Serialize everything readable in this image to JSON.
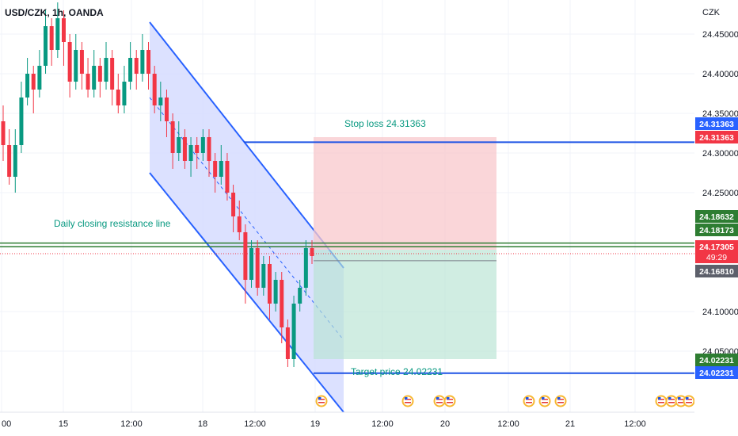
{
  "header": {
    "symbol": "USD/CZK, 1h, OANDA"
  },
  "chart_data": {
    "type": "candlestick",
    "title": "USD/CZK, 1h, OANDA",
    "currency": "CZK",
    "y_ticks": [
      "24.45000",
      "24.40000",
      "24.35000",
      "24.30000",
      "24.25000",
      "24.10000",
      "24.05000"
    ],
    "x_ticks": [
      "00",
      "15",
      "12:00",
      "18",
      "12:00",
      "19",
      "12:00",
      "20",
      "12:00",
      "21",
      "12:00"
    ],
    "ylim": [
      23.97,
      24.475
    ],
    "levels": {
      "stop_loss": 24.31363,
      "daily_resistance_a": 24.18632,
      "daily_resistance_b": 24.18173,
      "entry": 24.1681,
      "current": 24.17305,
      "target": 24.02231
    },
    "annotations": {
      "stop_loss": "Stop loss 24.31363",
      "target": "Target price 24.02231",
      "resistance": "Daily closing resistance line"
    },
    "price_tags": [
      {
        "label": "24.31363",
        "color": "#2962ff"
      },
      {
        "label": "24.31363",
        "color": "#f23645"
      },
      {
        "label": "24.18632",
        "color": "#2e7d32"
      },
      {
        "label": "24.18173",
        "color": "#2e7d32"
      },
      {
        "label": "24.17305",
        "color": "#f23645",
        "sub": "49:29"
      },
      {
        "label": "24.16810",
        "color": "#5d606b"
      },
      {
        "label": "24.02231",
        "color": "#2e7d32"
      },
      {
        "label": "24.02231",
        "color": "#2962ff"
      }
    ],
    "candles": [
      [
        24.34,
        24.31,
        24.29,
        24.36
      ],
      [
        24.31,
        24.27,
        24.26,
        24.33
      ],
      [
        24.27,
        24.31,
        24.25,
        24.33
      ],
      [
        24.31,
        24.37,
        24.3,
        24.39
      ],
      [
        24.37,
        24.4,
        24.36,
        24.42
      ],
      [
        24.4,
        24.38,
        24.35,
        24.41
      ],
      [
        24.38,
        24.41,
        24.37,
        24.43
      ],
      [
        24.41,
        24.46,
        24.4,
        24.48
      ],
      [
        24.46,
        24.43,
        24.41,
        24.47
      ],
      [
        24.43,
        24.47,
        24.42,
        24.49
      ],
      [
        24.47,
        24.44,
        24.41,
        24.48
      ],
      [
        24.44,
        24.39,
        24.37,
        24.45
      ],
      [
        24.39,
        24.43,
        24.38,
        24.45
      ],
      [
        24.43,
        24.4,
        24.38,
        24.44
      ],
      [
        24.4,
        24.38,
        24.37,
        24.42
      ],
      [
        24.38,
        24.41,
        24.37,
        24.43
      ],
      [
        24.41,
        24.39,
        24.37,
        24.42
      ],
      [
        24.39,
        24.42,
        24.38,
        24.44
      ],
      [
        24.42,
        24.38,
        24.36,
        24.43
      ],
      [
        24.38,
        24.36,
        24.35,
        24.4
      ],
      [
        24.36,
        24.39,
        24.35,
        24.41
      ],
      [
        24.39,
        24.42,
        24.38,
        24.44
      ],
      [
        24.42,
        24.4,
        24.38,
        24.43
      ],
      [
        24.4,
        24.43,
        24.39,
        24.45
      ],
      [
        24.43,
        24.4,
        24.38,
        24.44
      ],
      [
        24.4,
        24.36,
        24.35,
        24.41
      ],
      [
        24.36,
        24.37,
        24.34,
        24.39
      ],
      [
        24.37,
        24.34,
        24.32,
        24.38
      ],
      [
        24.34,
        24.3,
        24.28,
        24.35
      ],
      [
        24.3,
        24.32,
        24.29,
        24.34
      ],
      [
        24.32,
        24.29,
        24.28,
        24.33
      ],
      [
        24.29,
        24.31,
        24.27,
        24.32
      ],
      [
        24.31,
        24.3,
        24.28,
        24.32
      ],
      [
        24.3,
        24.32,
        24.29,
        24.33
      ],
      [
        24.32,
        24.29,
        24.27,
        24.33
      ],
      [
        24.29,
        24.27,
        24.25,
        24.3
      ],
      [
        24.27,
        24.29,
        24.26,
        24.31
      ],
      [
        24.29,
        24.25,
        24.24,
        24.3
      ],
      [
        24.25,
        24.22,
        24.2,
        24.26
      ],
      [
        24.22,
        24.2,
        24.19,
        24.24
      ],
      [
        24.2,
        24.14,
        24.11,
        24.21
      ],
      [
        24.14,
        24.18,
        24.13,
        24.19
      ],
      [
        24.18,
        24.13,
        24.12,
        24.19
      ],
      [
        24.13,
        24.16,
        24.12,
        24.17
      ],
      [
        24.16,
        24.11,
        24.09,
        24.17
      ],
      [
        24.11,
        24.14,
        24.1,
        24.15
      ],
      [
        24.14,
        24.08,
        24.06,
        24.15
      ],
      [
        24.08,
        24.04,
        24.03,
        24.09
      ],
      [
        24.04,
        24.11,
        24.03,
        24.12
      ],
      [
        24.11,
        24.13,
        24.1,
        24.14
      ],
      [
        24.13,
        24.18,
        24.12,
        24.19
      ],
      [
        24.18,
        24.17,
        24.16,
        24.19
      ]
    ]
  }
}
